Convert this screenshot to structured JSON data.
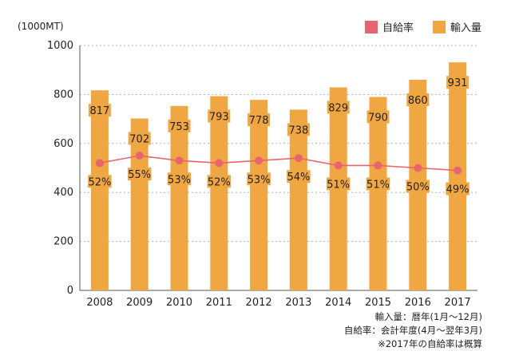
{
  "chart_data": {
    "type": "bar",
    "unit_label": "(1000MT)",
    "categories": [
      "2008",
      "2009",
      "2010",
      "2011",
      "2012",
      "2013",
      "2014",
      "2015",
      "2016",
      "2017"
    ],
    "series": [
      {
        "name": "輸入量",
        "type": "bar",
        "color": "#f0a742",
        "values": [
          817,
          702,
          753,
          793,
          778,
          738,
          829,
          790,
          860,
          931
        ],
        "labels": [
          "817",
          "702",
          "753",
          "793",
          "778",
          "738",
          "829",
          "790",
          "860",
          "931"
        ]
      },
      {
        "name": "自給率",
        "type": "line",
        "color": "#e8646e",
        "values": [
          52,
          55,
          53,
          52,
          53,
          54,
          51,
          51,
          50,
          49
        ],
        "labels": [
          "52%",
          "55%",
          "53%",
          "52%",
          "53%",
          "54%",
          "51%",
          "51%",
          "50%",
          "49%"
        ]
      }
    ],
    "ylim": [
      0,
      1000
    ],
    "yticks": [
      0,
      200,
      400,
      600,
      800,
      1000
    ],
    "ytick_labels": [
      "0",
      "200",
      "400",
      "600",
      "800",
      "1000"
    ],
    "grid": true,
    "legend_position": "top-right"
  },
  "notes": [
    "輸入量：暦年(1月〜12月)",
    "自給率：会計年度(4月〜翌年3月)",
    "※2017年の自給率は概算"
  ]
}
